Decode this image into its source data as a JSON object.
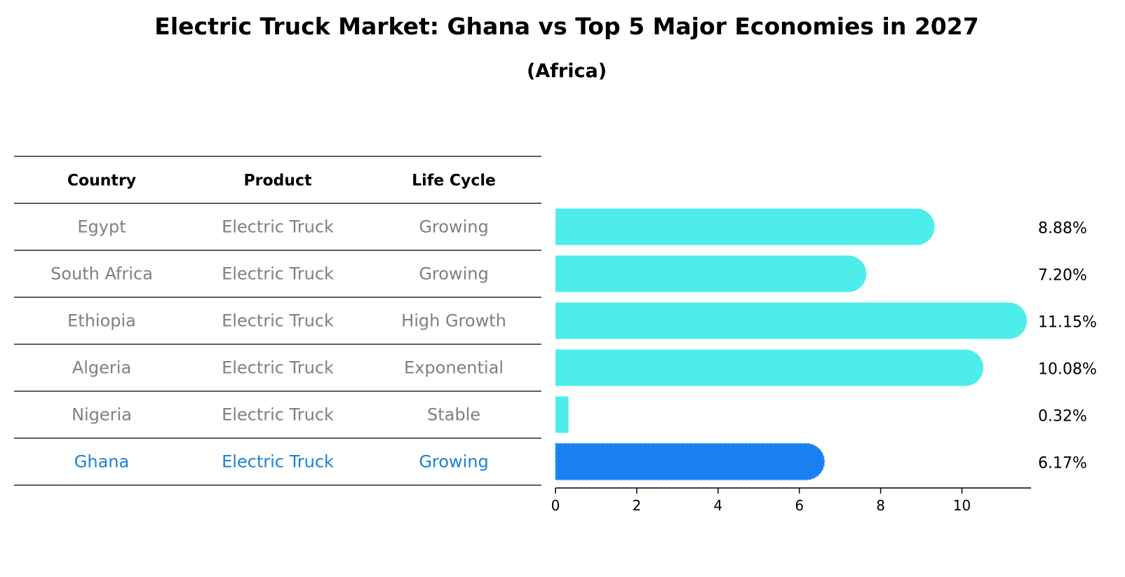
{
  "chart_data": {
    "type": "bar",
    "orientation": "horizontal",
    "title": "Electric Truck Market: Ghana vs Top 5 Major Economies in 2027",
    "subtitle": "(Africa)",
    "table_headers": [
      "Country",
      "Product",
      "Life Cycle"
    ],
    "rows": [
      {
        "country": "Egypt",
        "product": "Electric Truck",
        "life_cycle": "Growing",
        "value": 8.88,
        "label": "8.88%",
        "highlight": false
      },
      {
        "country": "South Africa",
        "product": "Electric Truck",
        "life_cycle": "Growing",
        "value": 7.2,
        "label": "7.20%",
        "highlight": false
      },
      {
        "country": "Ethiopia",
        "product": "Electric Truck",
        "life_cycle": "High Growth",
        "value": 11.15,
        "label": "11.15%",
        "highlight": false
      },
      {
        "country": "Algeria",
        "product": "Electric Truck",
        "life_cycle": "Exponential",
        "value": 10.08,
        "label": "10.08%",
        "highlight": false
      },
      {
        "country": "Nigeria",
        "product": "Electric Truck",
        "life_cycle": "Stable",
        "value": 0.32,
        "label": "0.32%",
        "highlight": false
      },
      {
        "country": "Ghana",
        "product": "Electric Truck",
        "life_cycle": "Growing",
        "value": 6.17,
        "label": "6.17%",
        "highlight": true
      }
    ],
    "xlim": [
      0,
      11.7
    ],
    "xticks": [
      0,
      2,
      4,
      6,
      8,
      10
    ],
    "colors": {
      "bar": "#4DEDEB",
      "highlight_bar": "#1A82F0",
      "text_normal": "#808080",
      "text_highlight": "#1A82D2",
      "line": "#000000"
    }
  }
}
